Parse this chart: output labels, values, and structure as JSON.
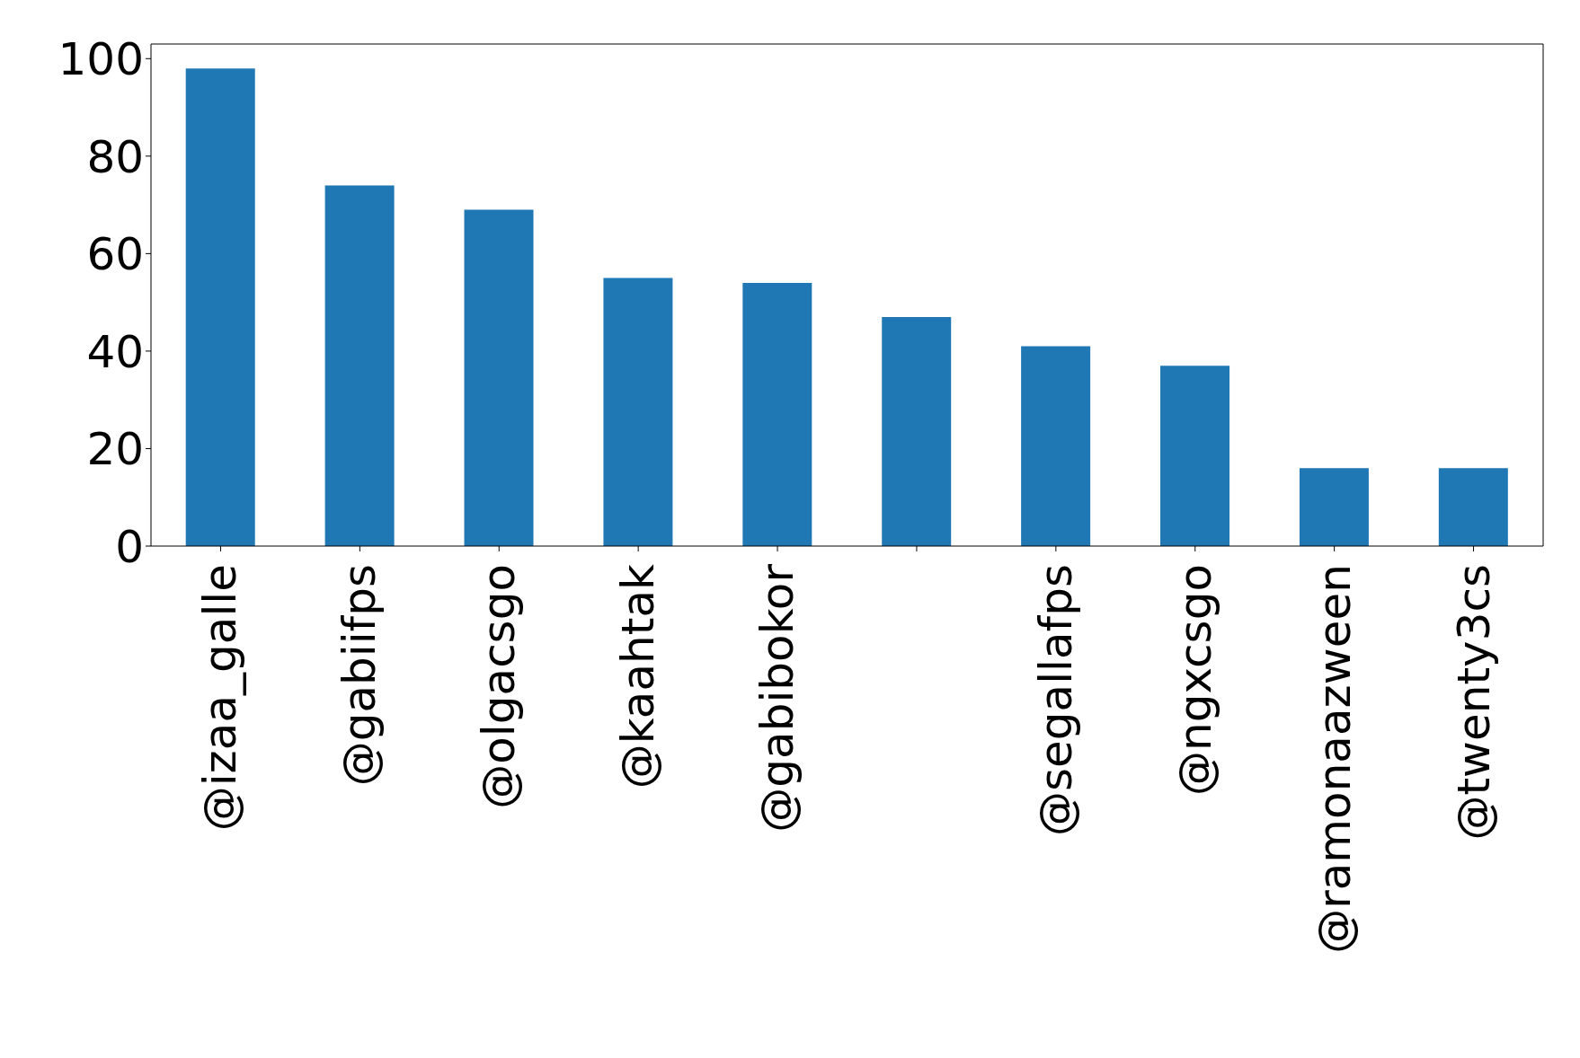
{
  "chart_data": {
    "type": "bar",
    "categories": [
      "@izaa_galle",
      "@gabiifps",
      "@olgacsgo",
      "@kaahtak",
      "@gabibokor",
      null,
      "@segallafps",
      "@ngxcsgo",
      "@ramonaazween",
      "@twenty3cs"
    ],
    "values": [
      98,
      74,
      69,
      55,
      54,
      47,
      41,
      37,
      16,
      16
    ],
    "color": "#1f77b4",
    "ylim": [
      0,
      103
    ],
    "yticks": [
      0,
      20,
      40,
      60,
      80,
      100
    ],
    "grid": false,
    "legend": false
  }
}
